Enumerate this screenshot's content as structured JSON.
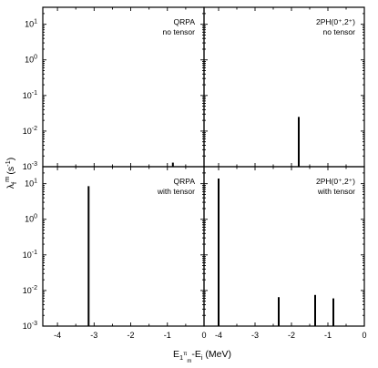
{
  "chart_data": {
    "type": "bar",
    "layout": "2x2 panels, shared axes",
    "xlabel": {
      "main": "E",
      "sub": "1",
      "subsup": "π",
      "subsub": "m",
      "rest": "-E",
      "sub2": "i",
      "unit": " (MeV)"
    },
    "ylabel": {
      "main": "λ",
      "sub": "f",
      "sup": "m",
      "unit_open": "(s",
      "unit_sup": "-1",
      "unit_close": ")"
    },
    "x_ticks": [
      "-4",
      "-3",
      "-2",
      "-1",
      "0"
    ],
    "xlim": [
      -4.4,
      0
    ],
    "y_scale": "log",
    "ylim": [
      0.001,
      30
    ],
    "y_ticks": [
      {
        "base": "10",
        "exp": "-3"
      },
      {
        "base": "10",
        "exp": "-2"
      },
      {
        "base": "10",
        "exp": "-1"
      },
      {
        "base": "10",
        "exp": "0"
      },
      {
        "base": "10",
        "exp": "1"
      }
    ],
    "panels": [
      {
        "id": "top-left",
        "label_line1": "QRPA",
        "label_line2": "no tensor",
        "bars": [
          {
            "x": -0.85,
            "y": 0.0013
          }
        ]
      },
      {
        "id": "top-right",
        "label_line1": "2PH(0⁺,2⁺)",
        "label_line2": "no tensor",
        "bars": [
          {
            "x": -1.8,
            "y": 0.025
          }
        ]
      },
      {
        "id": "bottom-left",
        "label_line1": "QRPA",
        "label_line2": "with tensor",
        "bars": [
          {
            "x": -3.15,
            "y": 8.5
          }
        ]
      },
      {
        "id": "bottom-right",
        "label_line1": "2PH(0⁺,2⁺)",
        "label_line2": "with tensor",
        "bars": [
          {
            "x": -4.0,
            "y": 14
          },
          {
            "x": -2.35,
            "y": 0.0065
          },
          {
            "x": -1.35,
            "y": 0.0075
          },
          {
            "x": -0.85,
            "y": 0.006
          }
        ]
      }
    ]
  }
}
